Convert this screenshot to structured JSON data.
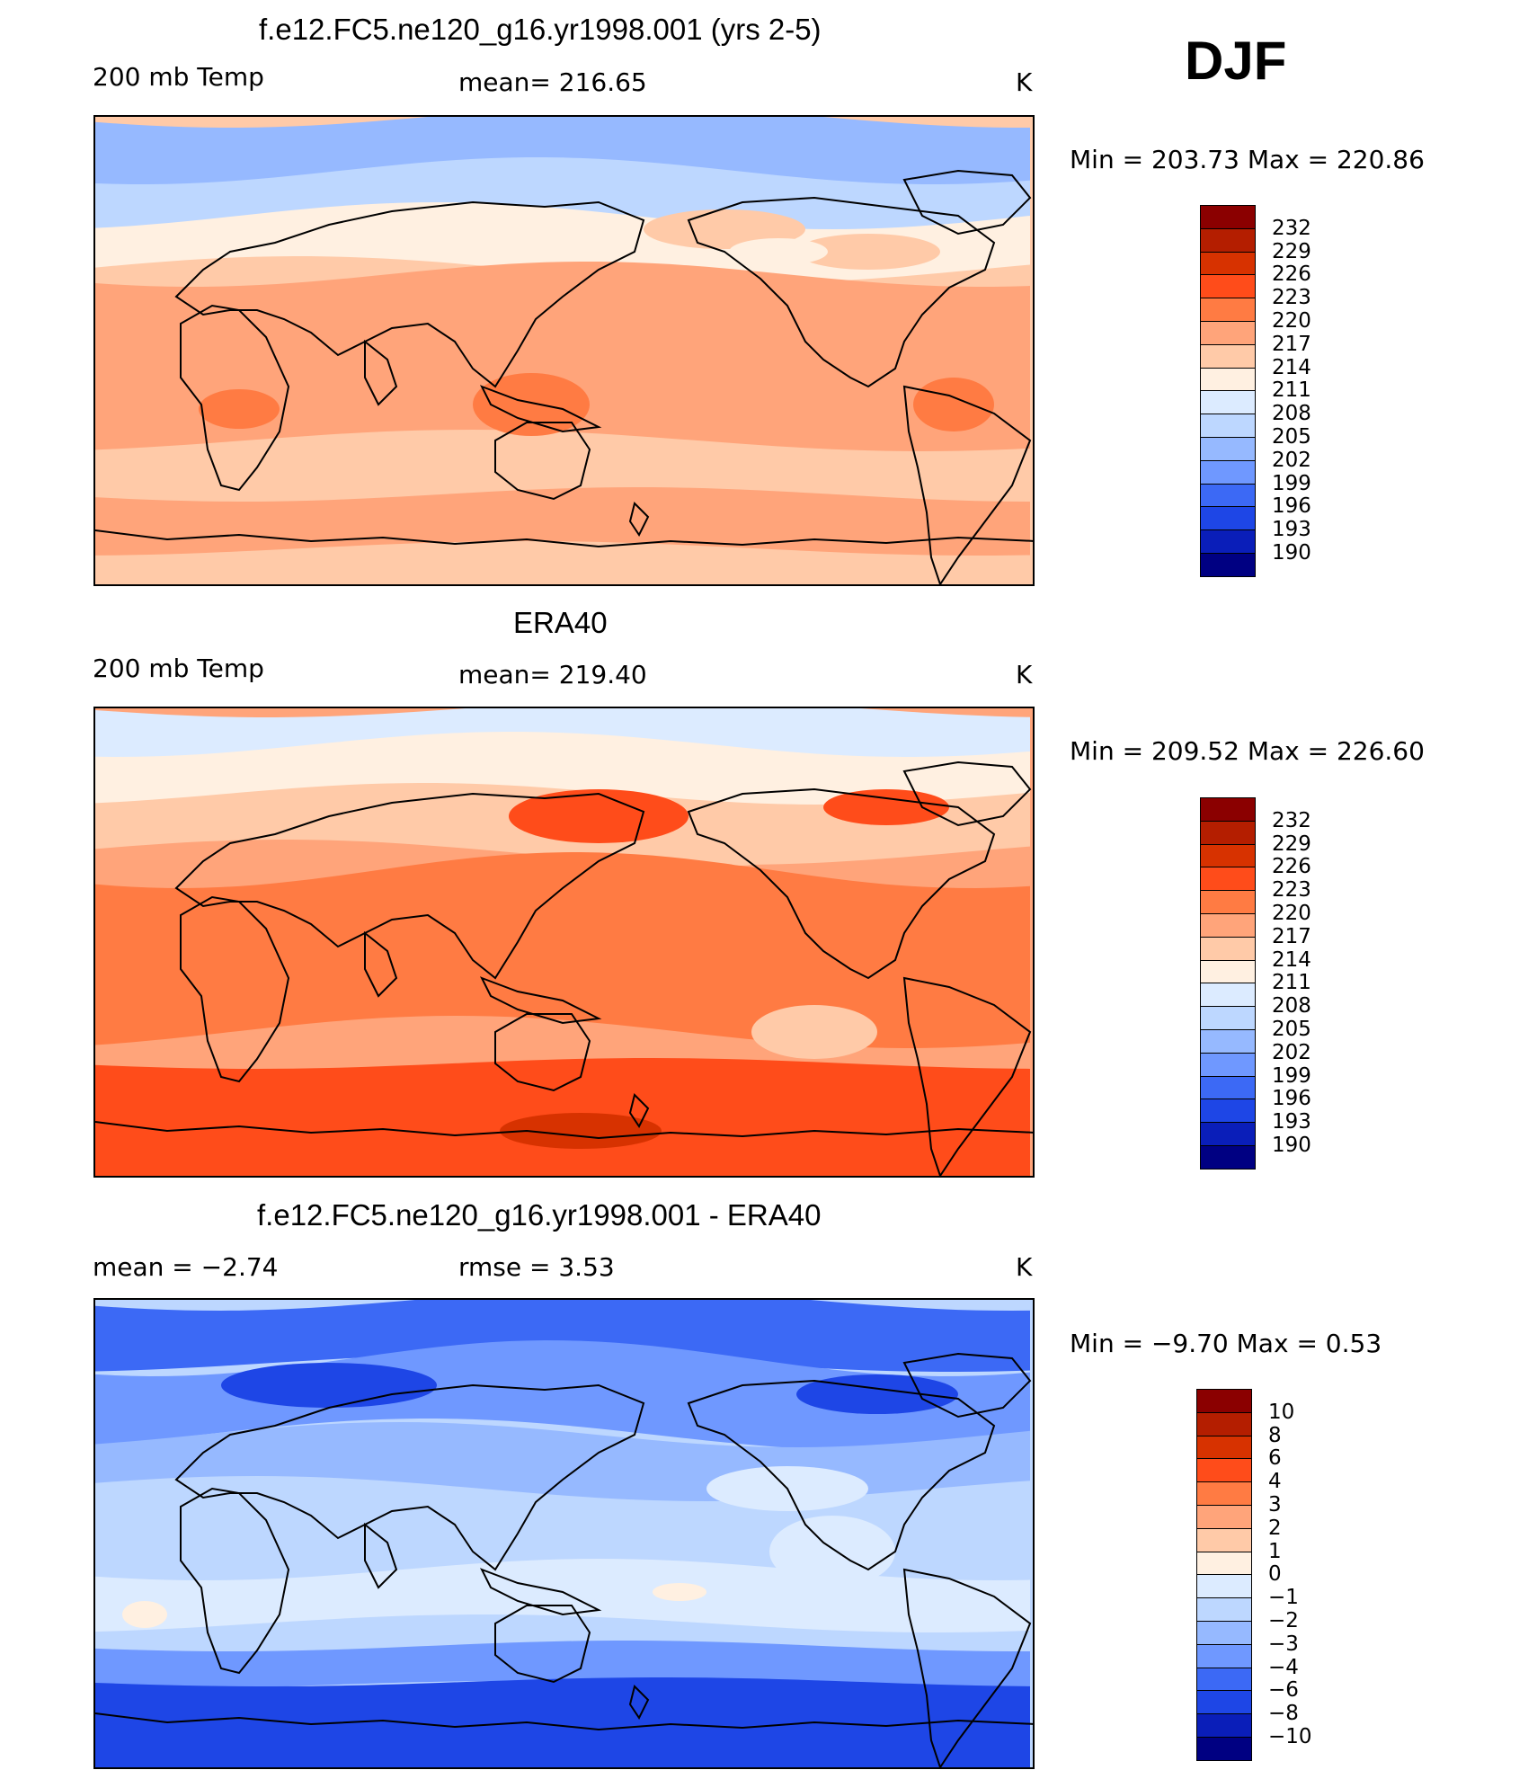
{
  "season": "DJF",
  "chart_data": [
    {
      "type": "heatmap",
      "title": "f.e12.FC5.ne120_g16.yr1998.001 (yrs 2-5)",
      "left_label": "200 mb Temp",
      "center_label": "mean=  216.65",
      "units": "K",
      "min_max": "Min  =  203.73  Max  =  220.86",
      "levels": [
        "232",
        "229",
        "226",
        "223",
        "220",
        "217",
        "214",
        "211",
        "208",
        "205",
        "202",
        "199",
        "196",
        "193",
        "190"
      ]
    },
    {
      "type": "heatmap",
      "title": "ERA40",
      "left_label": "200 mb Temp",
      "center_label": "mean=  219.40",
      "units": "K",
      "min_max": "Min  =  209.52  Max  =  226.60",
      "levels": [
        "232",
        "229",
        "226",
        "223",
        "220",
        "217",
        "214",
        "211",
        "208",
        "205",
        "202",
        "199",
        "196",
        "193",
        "190"
      ]
    },
    {
      "type": "heatmap",
      "title": "f.e12.FC5.ne120_g16.yr1998.001 - ERA40",
      "left_label": "mean  =     −2.74",
      "center_label": "rmse  =      3.53",
      "units": "K",
      "min_max": "Min  =    −9.70  Max  =      0.53",
      "levels": [
        "10",
        "8",
        "6",
        "4",
        "3",
        "2",
        "1",
        "0",
        "−1",
        "−2",
        "−3",
        "−4",
        "−6",
        "−8",
        "−10"
      ]
    }
  ],
  "colormap": [
    "#8b0000",
    "#b41e00",
    "#d73200",
    "#ff4c1a",
    "#ff7b43",
    "#ffa47a",
    "#ffcaa8",
    "#fff0e1",
    "#dcebff",
    "#bdd7ff",
    "#96b9ff",
    "#6f98ff",
    "#3c69f5",
    "#1e46e6",
    "#0a1eb9",
    "#000082"
  ]
}
